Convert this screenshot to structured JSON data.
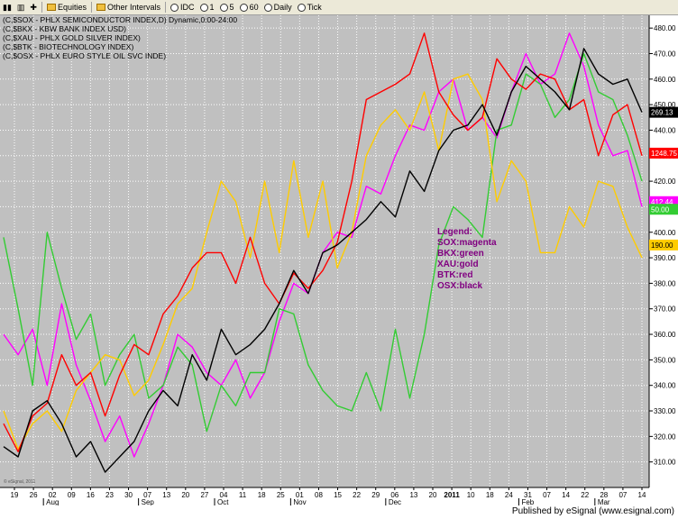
{
  "toolbar": {
    "items": [
      "Equities",
      "Other Intervals",
      "IDC",
      "1",
      "5",
      "60",
      "Daily",
      "Tick"
    ]
  },
  "header_lines": [
    "(C,$SOX - PHLX SEMICONDUCTOR INDEX,D) Dynamic,0:00-24:00",
    "(C,$BKX - KBW BANK INDEX USD)",
    "(C,$XAU - PHLX GOLD SILVER INDEX)",
    "(C,$BTK - BIOTECHNOLOGY INDEX)",
    "(C,$OSX - PHLX EURO STYLE OIL SVC INDE)"
  ],
  "watermark": "© eSignal, 2011",
  "legend": {
    "title": "Legend:",
    "entries": [
      "SOX:magenta",
      "BKX:green",
      "XAU:gold",
      "BTK:red",
      "OSX:black"
    ]
  },
  "footer": "Published by eSignal (www.esignal.com)",
  "colors": {
    "plot_bg": "#c0c0c0",
    "grid": "#ffffff",
    "SOX": "#ff00ff",
    "BKX": "#33cc33",
    "XAU": "#ffcc00",
    "BTK": "#ff0000",
    "OSX": "#000000",
    "legend_text": "#800080"
  },
  "chart_data": {
    "type": "line",
    "x_ticks": [
      "19",
      "26",
      "02",
      "09",
      "16",
      "23",
      "30",
      "07",
      "13",
      "20",
      "27",
      "04",
      "11",
      "18",
      "25",
      "01",
      "08",
      "15",
      "22",
      "29",
      "06",
      "13",
      "20",
      "2011",
      "10",
      "18",
      "24",
      "31",
      "07",
      "14",
      "22",
      "28",
      "07",
      "14"
    ],
    "x_ticks_bold": [
      "2011"
    ],
    "month_labels": [
      {
        "label": "Aug",
        "tick": "02"
      },
      {
        "label": "Sep",
        "tick": "07"
      },
      {
        "label": "Oct",
        "tick": "04"
      },
      {
        "label": "Nov",
        "tick": "01"
      },
      {
        "label": "Dec",
        "tick": "06"
      },
      {
        "label": "2011",
        "tick": "2011"
      },
      {
        "label": "Feb",
        "tick": "31"
      },
      {
        "label": "Mar",
        "tick": "28"
      }
    ],
    "ylim": [
      300,
      485
    ],
    "y_ticks": [
      310,
      320,
      330,
      340,
      350,
      360,
      370,
      380,
      390,
      400,
      410,
      420,
      430,
      440,
      450,
      460,
      470,
      480
    ],
    "right_markers": [
      {
        "series": "OSX",
        "label": "269.13",
        "value": 447
      },
      {
        "series": "BTK",
        "label": "1248.75",
        "value": 431
      },
      {
        "series": "SOX",
        "label": "412.44",
        "value": 412
      },
      {
        "series": "BKX",
        "label": "50.00",
        "value": 409
      },
      {
        "series": "XAU",
        "label": "190.00",
        "value": 395
      }
    ],
    "series": [
      {
        "name": "SOX",
        "values": [
          360,
          352,
          362,
          340,
          372,
          348,
          334,
          318,
          328,
          312,
          325,
          340,
          360,
          355,
          345,
          340,
          350,
          335,
          345,
          365,
          380,
          376,
          392,
          400,
          398,
          418,
          415,
          430,
          442,
          440,
          455,
          460,
          440,
          445,
          437,
          455,
          470,
          458,
          462,
          478,
          465,
          442,
          430,
          432,
          410
        ]
      },
      {
        "name": "BKX",
        "values": [
          398,
          370,
          340,
          400,
          378,
          358,
          368,
          340,
          352,
          360,
          335,
          340,
          355,
          348,
          322,
          340,
          332,
          345,
          345,
          370,
          368,
          348,
          338,
          332,
          330,
          345,
          330,
          362,
          335,
          360,
          395,
          410,
          405,
          398,
          440,
          442,
          462,
          458,
          445,
          452,
          470,
          455,
          452,
          438,
          420
        ]
      },
      {
        "name": "XAU",
        "values": [
          330,
          315,
          325,
          330,
          322,
          338,
          345,
          352,
          350,
          336,
          342,
          356,
          372,
          378,
          400,
          420,
          412,
          390,
          420,
          392,
          428,
          398,
          420,
          386,
          400,
          430,
          442,
          448,
          440,
          455,
          432,
          460,
          462,
          452,
          412,
          428,
          420,
          392,
          392,
          410,
          402,
          420,
          418,
          402,
          390
        ]
      },
      {
        "name": "BTK",
        "values": [
          325,
          314,
          328,
          333,
          352,
          340,
          345,
          328,
          344,
          356,
          352,
          368,
          375,
          386,
          392,
          392,
          380,
          398,
          380,
          372,
          384,
          378,
          385,
          396,
          420,
          452,
          455,
          458,
          462,
          478,
          455,
          446,
          440,
          445,
          468,
          460,
          456,
          462,
          460,
          448,
          452,
          430,
          446,
          450,
          430
        ]
      },
      {
        "name": "OSX",
        "values": [
          316,
          312,
          330,
          334,
          325,
          312,
          318,
          306,
          312,
          318,
          330,
          338,
          332,
          352,
          342,
          362,
          352,
          356,
          362,
          372,
          385,
          376,
          392,
          395,
          400,
          405,
          412,
          406,
          424,
          416,
          432,
          440,
          442,
          450,
          438,
          455,
          465,
          460,
          455,
          448,
          472,
          462,
          458,
          460,
          447
        ]
      }
    ]
  }
}
